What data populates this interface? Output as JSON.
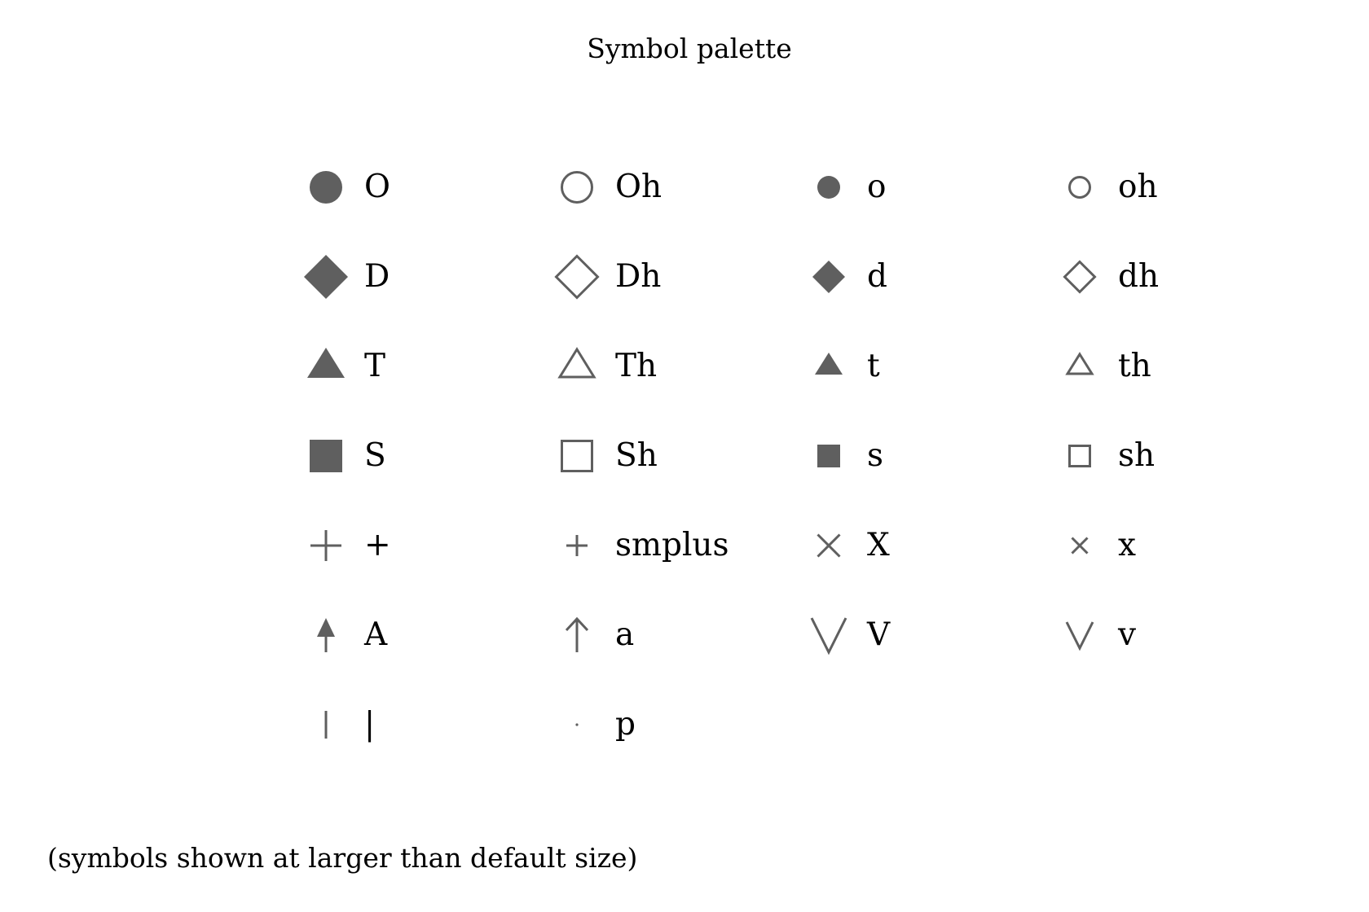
{
  "title": "Symbol palette",
  "footnote": "(symbols shown at larger than default size)",
  "colors": {
    "symbol": "#5f5f5f",
    "text": "#000000"
  },
  "symbols": [
    [
      {
        "label": "O",
        "icon": "filled-circle-large-icon"
      },
      {
        "label": "Oh",
        "icon": "hollow-circle-large-icon"
      },
      {
        "label": "o",
        "icon": "filled-circle-small-icon"
      },
      {
        "label": "oh",
        "icon": "hollow-circle-small-icon"
      }
    ],
    [
      {
        "label": "D",
        "icon": "filled-diamond-large-icon"
      },
      {
        "label": "Dh",
        "icon": "hollow-diamond-large-icon"
      },
      {
        "label": "d",
        "icon": "filled-diamond-small-icon"
      },
      {
        "label": "dh",
        "icon": "hollow-diamond-small-icon"
      }
    ],
    [
      {
        "label": "T",
        "icon": "filled-triangle-large-icon"
      },
      {
        "label": "Th",
        "icon": "hollow-triangle-large-icon"
      },
      {
        "label": "t",
        "icon": "filled-triangle-small-icon"
      },
      {
        "label": "th",
        "icon": "hollow-triangle-small-icon"
      }
    ],
    [
      {
        "label": "S",
        "icon": "filled-square-large-icon"
      },
      {
        "label": "Sh",
        "icon": "hollow-square-large-icon"
      },
      {
        "label": "s",
        "icon": "filled-square-small-icon"
      },
      {
        "label": "sh",
        "icon": "hollow-square-small-icon"
      }
    ],
    [
      {
        "label": "+",
        "icon": "plus-large-icon"
      },
      {
        "label": "smplus",
        "icon": "plus-small-icon"
      },
      {
        "label": "X",
        "icon": "cross-large-icon"
      },
      {
        "label": "x",
        "icon": "cross-small-icon"
      }
    ],
    [
      {
        "label": "A",
        "icon": "filled-arrow-up-icon"
      },
      {
        "label": "a",
        "icon": "open-arrow-up-icon"
      },
      {
        "label": "V",
        "icon": "v-large-icon"
      },
      {
        "label": "v",
        "icon": "v-small-icon"
      }
    ],
    [
      {
        "label": "|",
        "icon": "vertical-line-icon"
      },
      {
        "label": "p",
        "icon": "point-dot-icon"
      }
    ]
  ]
}
